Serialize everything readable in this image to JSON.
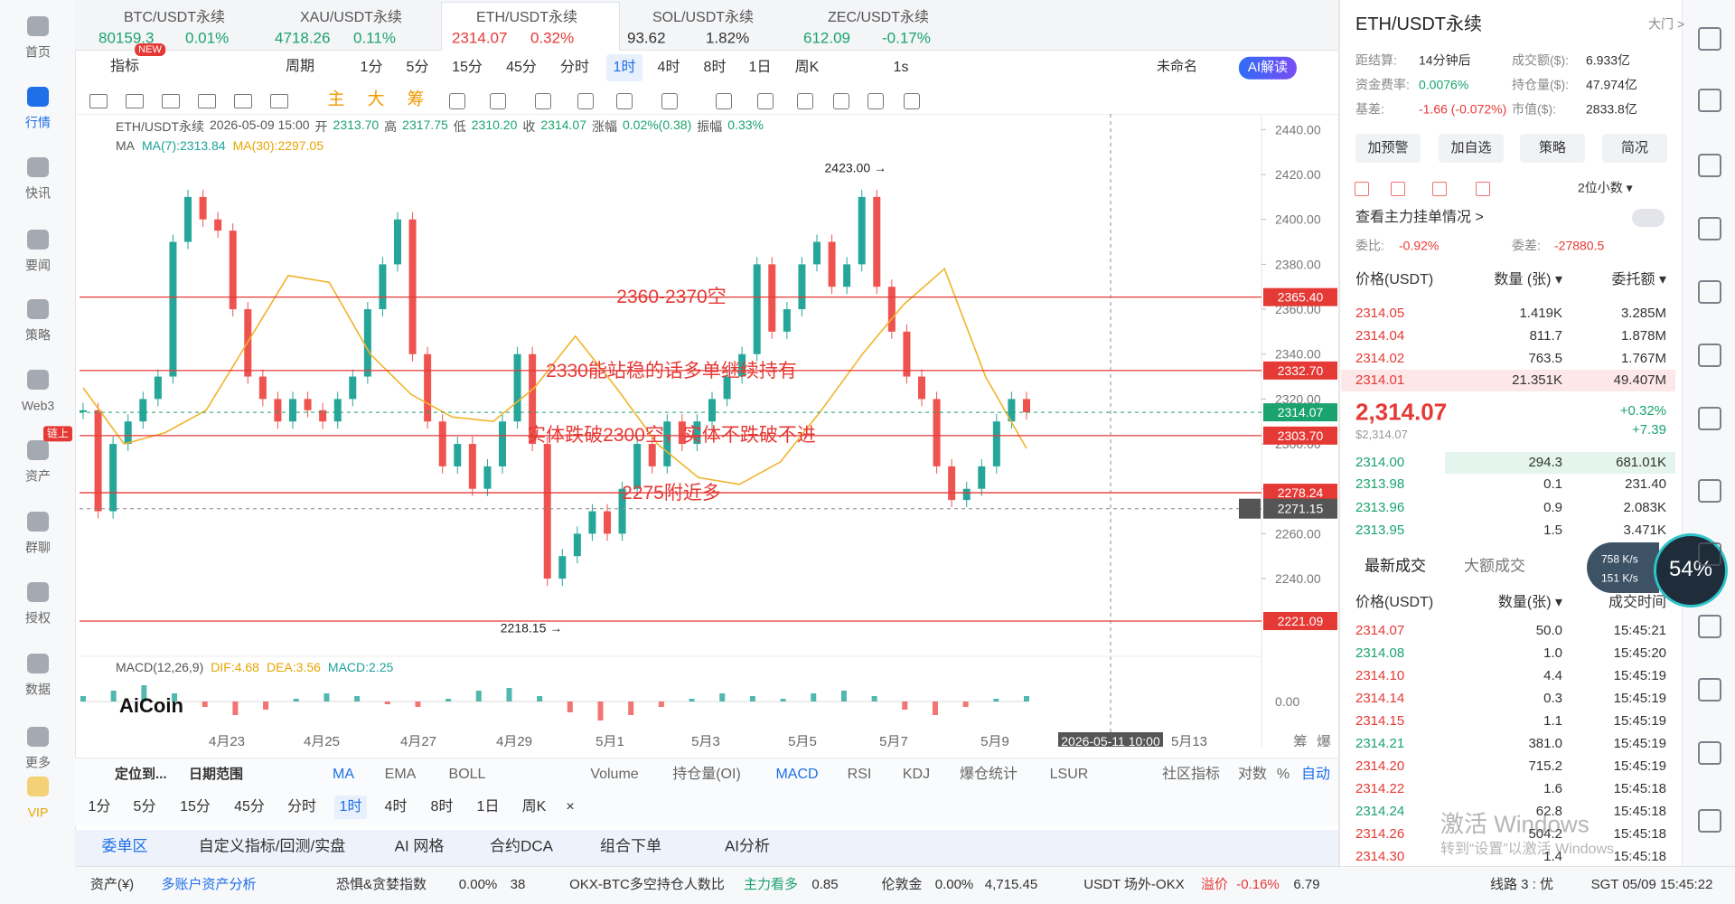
{
  "nav": {
    "items": [
      "首页",
      "行情",
      "快讯",
      "要闻",
      "策略",
      "Web3",
      "资产",
      "群聊",
      "授权",
      "数据",
      "更多",
      "VIP"
    ],
    "badge": "链上"
  },
  "tickers": [
    {
      "symbol": "BTC/USDT永续",
      "price": "80159.3",
      "change": "0.01%",
      "color": "#1aa36f"
    },
    {
      "symbol": "XAU/USDT永续",
      "price": "4718.26",
      "change": "0.11%",
      "color": "#1aa36f"
    },
    {
      "symbol": "ETH/USDT永续",
      "price": "2314.07",
      "change": "0.32%",
      "color": "#e53935"
    },
    {
      "symbol": "SOL/USDT永续",
      "price": "93.62",
      "change": "1.82%",
      "color": "#333333"
    },
    {
      "symbol": "ZEC/USDT永续",
      "price": "612.09",
      "change": "-0.17%",
      "color": "#1aa36f"
    }
  ],
  "new_badge": "NEW",
  "toolbar": {
    "indicator": "指标",
    "period": "周期",
    "periods": [
      "1分",
      "5分",
      "15分",
      "45分",
      "分时",
      "1时",
      "4时",
      "8时",
      "1日",
      "周K"
    ],
    "active_period": 5,
    "speed": "1s",
    "layout_name": "未命名",
    "ai": "AI解读"
  },
  "draw_tools": [
    "主",
    "大",
    "筹"
  ],
  "chart_data": {
    "type": "candlestick",
    "header": {
      "symbol": "ETH/USDT永续",
      "time": "2026-05-09 15:00",
      "fields": [
        {
          "label": "开",
          "value": "2313.70"
        },
        {
          "label": "高",
          "value": "2317.75"
        },
        {
          "label": "低",
          "value": "2310.20"
        },
        {
          "label": "收",
          "value": "2314.07"
        },
        {
          "label": "涨幅",
          "value": "0.02%(0.38)"
        },
        {
          "label": "振幅",
          "value": "0.33%"
        }
      ]
    },
    "ma_title": "MA",
    "ma_labels": [
      {
        "text": "MA(7):2313.84",
        "color": "#1aa39a"
      },
      {
        "text": "MA(30):2297.05",
        "color": "#e8a400"
      }
    ],
    "series": [
      {
        "color": "#26a69a",
        "down_color": "#ef5350",
        "values": [
          2315,
          2270,
          2300,
          2310,
          2320,
          2330,
          2390,
          2410,
          2400,
          2395,
          2360,
          2330,
          2320,
          2310,
          2320,
          2315,
          2310,
          2320,
          2330,
          2360,
          2380,
          2400,
          2340,
          2310,
          2290,
          2300,
          2280,
          2290,
          2310,
          2340,
          2300,
          2240,
          2250,
          2260,
          2270,
          2260,
          2280,
          2300,
          2290,
          2310,
          2300,
          2310,
          2320,
          2330,
          2340,
          2380,
          2350,
          2360,
          2380,
          2390,
          2370,
          2380,
          2410,
          2370,
          2350,
          2330,
          2320,
          2290,
          2275,
          2280,
          2290,
          2310,
          2320,
          2314.07
        ]
      },
      {
        "color": "#f0b429",
        "values": [
          2325,
          2300,
          2305,
          2315,
          2345,
          2375,
          2372,
          2340,
          2322,
          2312,
          2310,
          2325,
          2348,
          2325,
          2300,
          2285,
          2282,
          2292,
          2315,
          2340,
          2362,
          2378,
          2330,
          2298
        ]
      }
    ],
    "ylim": [
      2207,
      2447
    ],
    "yticks": [
      {
        "value": 2240,
        "label": "2240.00"
      },
      {
        "value": 2260,
        "label": "2260.00"
      },
      {
        "value": 2280,
        "label": "2280.00"
      },
      {
        "value": 2300,
        "label": "2300.00"
      },
      {
        "value": 2320,
        "label": "2320.00"
      },
      {
        "value": 2340,
        "label": "2340.00"
      },
      {
        "value": 2360,
        "label": "2360.00"
      },
      {
        "value": 2380,
        "label": "2380.00"
      },
      {
        "value": 2400,
        "label": "2400.00"
      },
      {
        "value": 2420,
        "label": "2420.00"
      },
      {
        "value": 2440,
        "label": "2440.00"
      }
    ],
    "levels": [
      {
        "value": 2365.4,
        "label": "2365.40"
      },
      {
        "value": 2332.7,
        "label": "2332.70"
      },
      {
        "value": 2303.7,
        "label": "2303.70"
      },
      {
        "value": 2278.24,
        "label": "2278.24"
      },
      {
        "value": 2221.09,
        "label": "2221.09"
      }
    ],
    "level_color": "#e53935",
    "current": {
      "value": 2314.07,
      "label": "2314.07",
      "color": "#1aa36f"
    },
    "crosshair": {
      "value": 2271.15,
      "label": "2271.15",
      "time": "2026-05-11 10:00"
    },
    "annotations": [
      "2360-2370空",
      "2330能站稳的话多单继续持有",
      "实体跌破2300空，实体不跌破不进",
      "2275附近多"
    ],
    "high": {
      "value": 2423,
      "label": "2423.00 →"
    },
    "low": {
      "value": 2218.15,
      "label": "2218.15 →"
    },
    "x_labels": [
      "4月23",
      "4月25",
      "4月27",
      "4月29",
      "5月1",
      "5月3",
      "5月5",
      "5月7",
      "5月9",
      "5月13"
    ],
    "axis_buttons": [
      "筹",
      "爆"
    ],
    "macd": {
      "title": "MACD(12,26,9)",
      "labels": [
        {
          "text": "DIF:4.68",
          "color": "#e8a400"
        },
        {
          "text": "DEA:3.56",
          "color": "#e8a400"
        },
        {
          "text": "MACD:2.25",
          "color": "#1aa39a"
        }
      ],
      "zero_label": "0.00",
      "ylim": [
        -10,
        10
      ],
      "values": [
        2,
        4,
        6,
        3,
        -2,
        -5,
        -3,
        1,
        3,
        2,
        -1,
        -2,
        1,
        4,
        5,
        2,
        -4,
        -7,
        -5,
        -2,
        1,
        3,
        2,
        1,
        3,
        4,
        2,
        -3,
        -5,
        -2,
        1,
        2
      ]
    },
    "logo": "AiCoin"
  },
  "indicator_bar": {
    "locate": "定位到...",
    "range": "日期范围",
    "items": [
      "MA",
      "EMA",
      "BOLL",
      "Volume",
      "持仓量(OI)",
      "MACD",
      "RSI",
      "KDJ",
      "爆仓统计",
      "LSUR",
      "社区指标",
      "对数",
      "%",
      "自动"
    ]
  },
  "period_bar": [
    "1分",
    "5分",
    "15分",
    "45分",
    "分时",
    "1时",
    "4时",
    "8时",
    "1日",
    "周K",
    "×"
  ],
  "tabs": [
    "委单区",
    "自定义指标/回测/实盘",
    "AI 网格",
    "合约DCA",
    "组合下单",
    "AI分析"
  ],
  "status": [
    "资产(¥)",
    "多账户资产分析",
    "恐惧&贪婪指数",
    "0.00%",
    "38",
    "OKX-BTC多空持仓人数比",
    "主力看多",
    "0.85",
    "伦敦金",
    "0.00%",
    "4,715.45",
    "USDT 场外-OKX",
    "溢价",
    "-0.16%",
    "6.79",
    "线路 3 : 优",
    "SGT 05/09 15:45:22"
  ],
  "panel": {
    "title": "ETH/USDT永续",
    "door": "大门 >",
    "stats": [
      {
        "label": "距结算:",
        "value": "14分钟后",
        "color": "#333333"
      },
      {
        "label": "成交额($):",
        "value": "6.933亿",
        "color": "#333333"
      },
      {
        "label": "资金费率:",
        "value": "0.0076%",
        "color": "#1aa36f"
      },
      {
        "label": "持仓量($):",
        "value": "47.974亿",
        "color": "#333333"
      },
      {
        "label": "基差:",
        "value": "-1.66 (-0.072%)",
        "color": "#e53935"
      },
      {
        "label": "市值($):",
        "value": "2833.8亿",
        "color": "#333333"
      }
    ],
    "buttons": [
      "加预警",
      "加自选",
      "策略",
      "简况"
    ],
    "decimals": "2位小数 ▾",
    "main_orders": "查看主力挂单情况 >",
    "ratio": {
      "label": "委比:",
      "value": "-0.92%"
    },
    "diff": {
      "label": "委差:",
      "value": "-27880.5"
    },
    "book_header": [
      "价格(USDT)",
      "数量 (张) ▾",
      "委托额 ▾"
    ],
    "asks": [
      {
        "price": "2314.05",
        "qty": "1.419K",
        "amount": "3.285M"
      },
      {
        "price": "2314.04",
        "qty": "811.7",
        "amount": "1.878M"
      },
      {
        "price": "2314.02",
        "qty": "763.5",
        "amount": "1.767M"
      },
      {
        "price": "2314.01",
        "qty": "21.351K",
        "amount": "49.407M"
      }
    ],
    "last": {
      "price": "2,314.07",
      "usd": "$2,314.07",
      "pct": "+0.32%",
      "abs": "+7.39"
    },
    "bids": [
      {
        "price": "2314.00",
        "qty": "294.3",
        "amount": "681.01K"
      },
      {
        "price": "2313.98",
        "qty": "0.1",
        "amount": "231.40"
      },
      {
        "price": "2313.96",
        "qty": "0.9",
        "amount": "2.083K"
      },
      {
        "price": "2313.95",
        "qty": "1.5",
        "amount": "3.471K"
      }
    ],
    "trade_tabs": [
      "最新成交",
      "大额成交"
    ],
    "trade_header": [
      "价格(USDT)",
      "数量(张) ▾",
      "成交时间"
    ],
    "trades": [
      {
        "price": "2314.07",
        "qty": "50.0",
        "time": "15:45:21",
        "color": "#e53935"
      },
      {
        "price": "2314.08",
        "qty": "1.0",
        "time": "15:45:20",
        "color": "#1aa36f"
      },
      {
        "price": "2314.10",
        "qty": "4.4",
        "time": "15:45:19",
        "color": "#e53935"
      },
      {
        "price": "2314.14",
        "qty": "0.3",
        "time": "15:45:19",
        "color": "#e53935"
      },
      {
        "price": "2314.15",
        "qty": "1.1",
        "time": "15:45:19",
        "color": "#e53935"
      },
      {
        "price": "2314.21",
        "qty": "381.0",
        "time": "15:45:19",
        "color": "#1aa36f"
      },
      {
        "price": "2314.20",
        "qty": "715.2",
        "time": "15:45:19",
        "color": "#e53935"
      },
      {
        "price": "2314.22",
        "qty": "1.6",
        "time": "15:45:18",
        "color": "#e53935"
      },
      {
        "price": "2314.24",
        "qty": "62.8",
        "time": "15:45:18",
        "color": "#1aa36f"
      },
      {
        "price": "2314.26",
        "qty": "504.2",
        "time": "15:45:18",
        "color": "#e53935"
      },
      {
        "price": "2314.30",
        "qty": "1.4",
        "time": "15:45:18",
        "color": "#e53935"
      }
    ]
  },
  "speed_widget": {
    "up": "758 K/s",
    "down": "151 K/s",
    "percent": "54%"
  },
  "watermark": [
    "激活 Windows",
    "转到“设置”以激活 Windows"
  ]
}
